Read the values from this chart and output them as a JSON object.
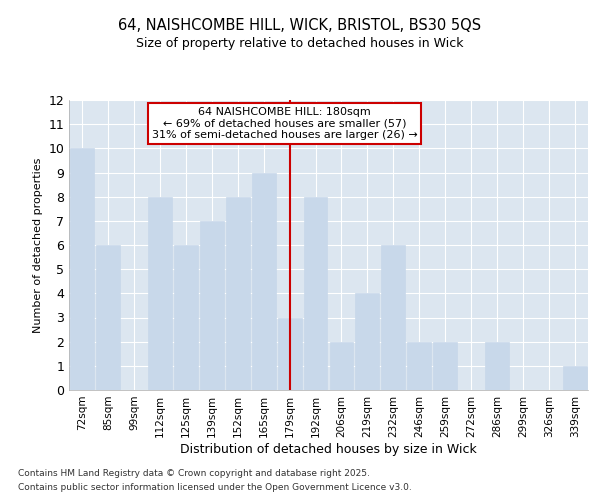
{
  "title1": "64, NAISHCOMBE HILL, WICK, BRISTOL, BS30 5QS",
  "title2": "Size of property relative to detached houses in Wick",
  "xlabel": "Distribution of detached houses by size in Wick",
  "ylabel": "Number of detached properties",
  "categories": [
    "72sqm",
    "85sqm",
    "99sqm",
    "112sqm",
    "125sqm",
    "139sqm",
    "152sqm",
    "165sqm",
    "179sqm",
    "192sqm",
    "206sqm",
    "219sqm",
    "232sqm",
    "246sqm",
    "259sqm",
    "272sqm",
    "286sqm",
    "299sqm",
    "326sqm",
    "339sqm"
  ],
  "values": [
    10,
    6,
    0,
    8,
    6,
    7,
    8,
    9,
    3,
    8,
    2,
    4,
    6,
    2,
    2,
    0,
    2,
    0,
    0,
    1
  ],
  "highlight_index": 8,
  "annotation_line1": "64 NAISHCOMBE HILL: 180sqm",
  "annotation_line2": "← 69% of detached houses are smaller (57)",
  "annotation_line3": "31% of semi-detached houses are larger (26) →",
  "bar_color": "#c8d8ea",
  "bar_edge_color": "#c8d8ea",
  "highlight_line_color": "#cc0000",
  "annotation_box_edge": "#cc0000",
  "ylim": [
    0,
    12
  ],
  "yticks": [
    0,
    1,
    2,
    3,
    4,
    5,
    6,
    7,
    8,
    9,
    10,
    11,
    12
  ],
  "footer1": "Contains HM Land Registry data © Crown copyright and database right 2025.",
  "footer2": "Contains public sector information licensed under the Open Government Licence v3.0.",
  "fig_bg_color": "#ffffff",
  "plot_bg_color": "#dce6f0"
}
